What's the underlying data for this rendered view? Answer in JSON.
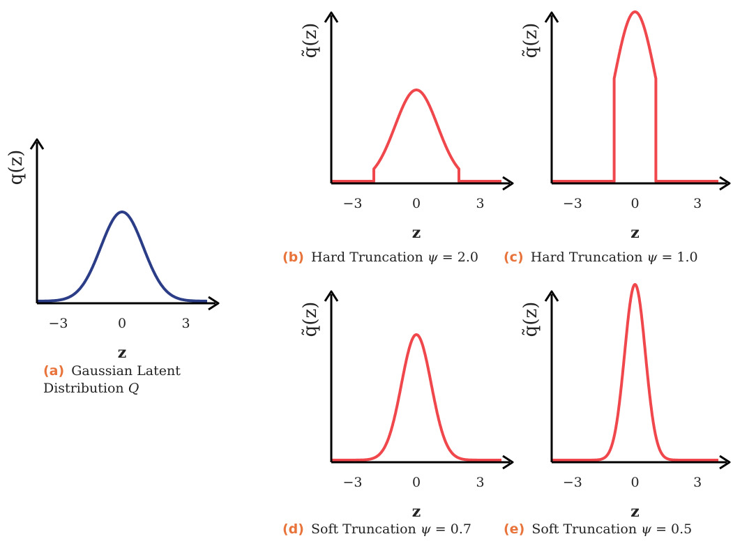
{
  "colors": {
    "gaussian": "#2b3d87",
    "truncated": "#f0474c",
    "caption_label": "#e8743b"
  },
  "panels": {
    "a": {
      "label": "(a)",
      "caption": "Gaussian Latent Distribution",
      "symbol": "Q",
      "ylabel": "q(z)",
      "xlabel": "z"
    },
    "b": {
      "label": "(b)",
      "caption": "Hard Truncation",
      "symbol": "ψ",
      "value_text": "= 2.0",
      "ylabel": "q̃(z)",
      "xlabel": "z"
    },
    "c": {
      "label": "(c)",
      "caption": "Hard Truncation",
      "symbol": "ψ",
      "value_text": "= 1.0",
      "ylabel": "q̃(z)",
      "xlabel": "z"
    },
    "d": {
      "label": "(d)",
      "caption": "Soft Truncation",
      "symbol": "ψ",
      "value_text": "= 0.7",
      "ylabel": "q̃(z)",
      "xlabel": "z"
    },
    "e": {
      "label": "(e)",
      "caption": "Soft Truncation",
      "symbol": "ψ",
      "value_text": "= 0.5",
      "ylabel": "q̃(z)",
      "xlabel": "z"
    }
  },
  "chart_data": [
    {
      "id": "a",
      "type": "line",
      "distribution": "gaussian",
      "sigma": 1.0,
      "peak": 1.0,
      "xlim": [
        -4,
        4
      ],
      "ylim": [
        0,
        1.0
      ],
      "xticks": [
        -3,
        0,
        3
      ],
      "xtick_labels": [
        "−3",
        "0",
        "3"
      ],
      "color": "#2b3d87"
    },
    {
      "id": "b",
      "type": "line",
      "distribution": "hard_truncated",
      "psi": 2.0,
      "sigma": 1.0,
      "peak": 1.0,
      "xlim": [
        -4,
        4
      ],
      "ylim": [
        0,
        1.0
      ],
      "xticks": [
        -3,
        0,
        3
      ],
      "xtick_labels": [
        "−3",
        "0",
        "3"
      ],
      "color": "#f0474c"
    },
    {
      "id": "c",
      "type": "line",
      "distribution": "hard_truncated",
      "psi": 1.0,
      "sigma": 1.0,
      "peak": 1.0,
      "xlim": [
        -4,
        4
      ],
      "ylim": [
        0,
        1.0
      ],
      "xticks": [
        -3,
        0,
        3
      ],
      "xtick_labels": [
        "−3",
        "0",
        "3"
      ],
      "color": "#f0474c"
    },
    {
      "id": "d",
      "type": "line",
      "distribution": "soft_truncated",
      "psi": 0.7,
      "sigma": 0.7,
      "peak": 1.0,
      "xlim": [
        -4,
        4
      ],
      "ylim": [
        0,
        1.0
      ],
      "xticks": [
        -3,
        0,
        3
      ],
      "xtick_labels": [
        "−3",
        "0",
        "3"
      ],
      "color": "#f0474c"
    },
    {
      "id": "e",
      "type": "line",
      "distribution": "soft_truncated",
      "psi": 0.5,
      "sigma": 0.5,
      "peak": 1.0,
      "xlim": [
        -4,
        4
      ],
      "ylim": [
        0,
        1.0
      ],
      "xticks": [
        -3,
        0,
        3
      ],
      "xtick_labels": [
        "−3",
        "0",
        "3"
      ],
      "color": "#f0474c"
    }
  ]
}
